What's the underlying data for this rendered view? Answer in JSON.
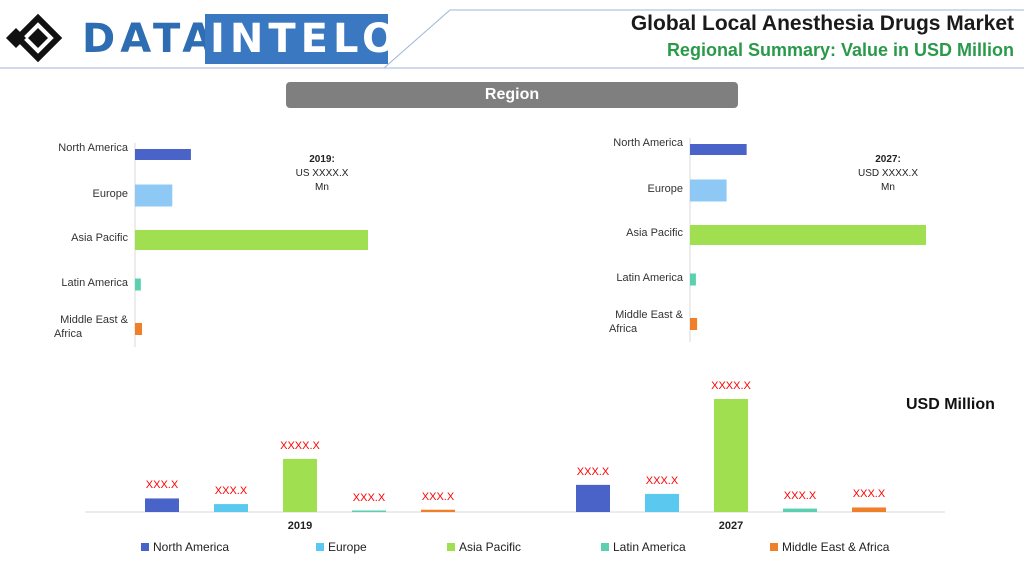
{
  "header": {
    "logo_left": "DATA",
    "logo_right": "INTELO",
    "title": "Global Local Anesthesia Drugs Market",
    "subtitle": "Regional Summary: Value in USD Million"
  },
  "region_label": "Region",
  "unit_label": "USD Million",
  "colors": {
    "North America": "#4a63c8",
    "Europe": "#5bc8f0",
    "Asia Pacific": "#a0e050",
    "Latin America": "#5ad0b0",
    "Middle East & Africa": "#f07f2a",
    "europe_hbar": "#8ec8f4"
  },
  "chart_data": [
    {
      "type": "bar",
      "orientation": "horizontal",
      "panel": "2019",
      "note_year": "2019:",
      "note_value": "US XXXX.X",
      "note_unit": "Mn",
      "categories": [
        "North America",
        "Europe",
        "Asia Pacific",
        "Latin America",
        "Middle East & Africa"
      ],
      "category_labels": [
        "North America",
        "Europe",
        "Asia Pacific",
        "Latin America",
        "Middle East &\nAfrica"
      ],
      "values": [
        24,
        16,
        100,
        2.5,
        3
      ]
    },
    {
      "type": "bar",
      "orientation": "horizontal",
      "panel": "2027",
      "note_year": "2027:",
      "note_value": "USD XXXX.X",
      "note_unit": "Mn",
      "categories": [
        "North America",
        "Europe",
        "Asia Pacific",
        "Latin America",
        "Middle East & Africa"
      ],
      "category_labels": [
        "North America",
        "Europe",
        "Asia Pacific",
        "Latin America",
        "Middle East &\nAfrica"
      ],
      "values": [
        24,
        15.5,
        100,
        2.5,
        3
      ]
    },
    {
      "type": "bar",
      "orientation": "vertical",
      "groups": [
        "2019",
        "2027"
      ],
      "series": [
        {
          "name": "North America",
          "values": [
            12,
            24
          ],
          "labels": [
            "XXX.X",
            "XXX.X"
          ]
        },
        {
          "name": "Europe",
          "values": [
            7,
            16
          ],
          "labels": [
            "XXX.X",
            "XXX.X"
          ]
        },
        {
          "name": "Asia Pacific",
          "values": [
            47,
            100
          ],
          "labels": [
            "XXXX.X",
            "XXXX.X"
          ]
        },
        {
          "name": "Latin America",
          "values": [
            1,
            3
          ],
          "labels": [
            "XXX.X",
            "XXX.X"
          ]
        },
        {
          "name": "Middle East & Africa",
          "values": [
            2,
            4
          ],
          "labels": [
            "XXX.X",
            "XXX.X"
          ]
        }
      ],
      "legend": [
        "North America",
        "Europe",
        "Asia Pacific",
        "Latin America",
        "Middle East & Africa"
      ]
    }
  ]
}
